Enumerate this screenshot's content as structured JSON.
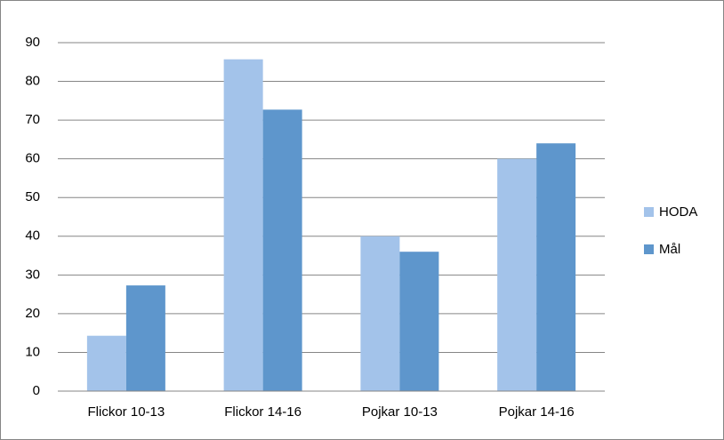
{
  "chart_data": {
    "type": "bar",
    "categories": [
      "Flickor 10-13",
      "Flickor 14-16",
      "Pojkar 10-13",
      "Pojkar 14-16"
    ],
    "series": [
      {
        "name": "HODA",
        "color": "#a3c3ea",
        "values": [
          14.3,
          85.7,
          40,
          60
        ]
      },
      {
        "name": "Mål",
        "color": "#5e96cc",
        "values": [
          27.3,
          72.7,
          36,
          64
        ]
      }
    ],
    "ylim": [
      0,
      90
    ],
    "yticks": [
      0,
      10,
      20,
      30,
      40,
      50,
      60,
      70,
      80,
      90
    ],
    "grid": true,
    "legend": "right"
  }
}
